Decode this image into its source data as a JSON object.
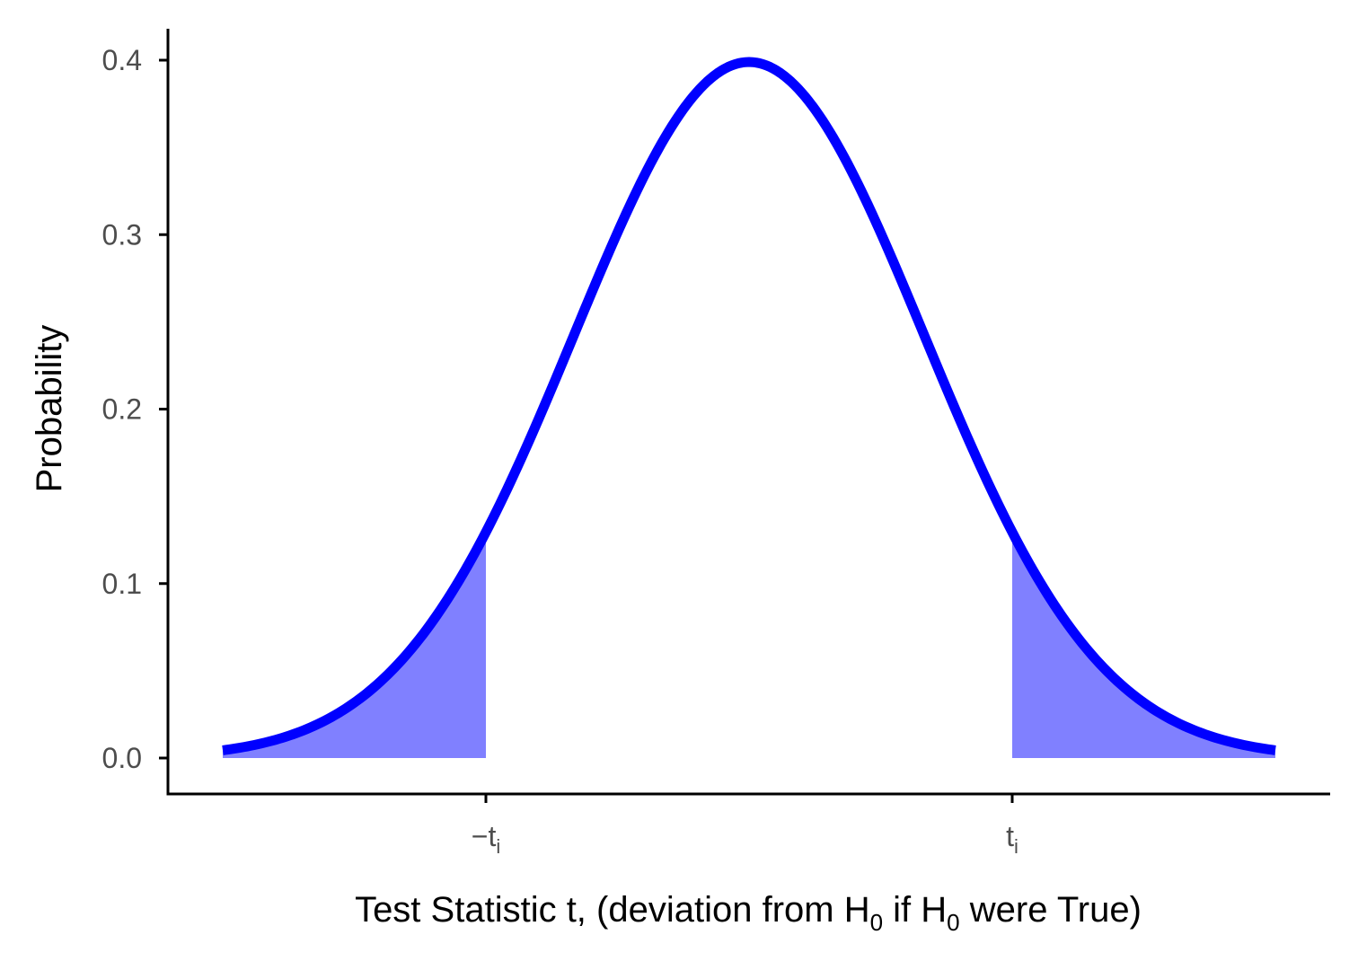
{
  "chart_data": {
    "type": "area",
    "title": "",
    "xlabel": {
      "pre": "Test Statistic t, (deviation from H",
      "sub1": "0",
      "mid": " if H",
      "sub2": "0",
      "post": " were True)"
    },
    "ylabel": "Probability",
    "xlim": [
      -3,
      3
    ],
    "ylim": [
      0,
      0.4
    ],
    "critical_value": 1.5,
    "y_ticks": [
      {
        "value": 0.0,
        "label": "0.0"
      },
      {
        "value": 0.1,
        "label": "0.1"
      },
      {
        "value": 0.2,
        "label": "0.2"
      },
      {
        "value": 0.3,
        "label": "0.3"
      },
      {
        "value": 0.4,
        "label": "0.4"
      }
    ],
    "x_ticks": [
      {
        "value": -1.5,
        "label": "−t",
        "sub": "i"
      },
      {
        "value": 1.5,
        "label": "t",
        "sub": "i"
      }
    ],
    "series": [
      {
        "kind": "density-curve",
        "distribution": "standard normal",
        "color": "#0000ff"
      },
      {
        "kind": "rejection-region",
        "range": "x < −t_i and x > t_i",
        "color": "#8080ff"
      }
    ],
    "grid": false,
    "legend": "none"
  }
}
